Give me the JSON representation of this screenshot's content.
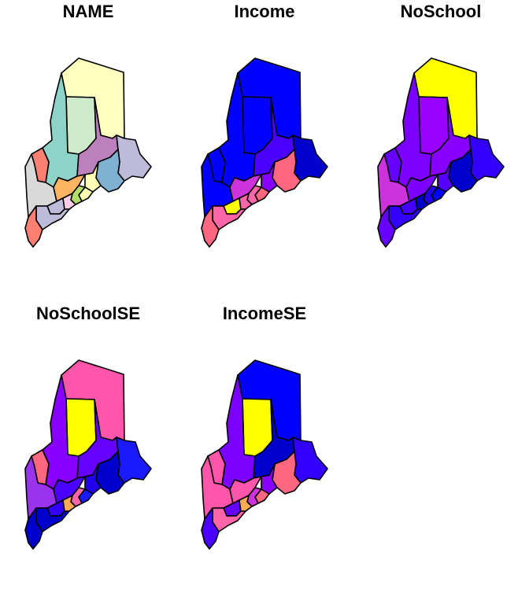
{
  "maps": [
    {
      "title": "NAME",
      "colors": {
        "aroostook": "#ffffc0",
        "piscataquis": "#cdeacb",
        "somerset": "#8dd3c7",
        "franklin": "#fb8072",
        "oxford": "#d9d9d9",
        "penobscot": "#bc80bd",
        "washington": "#bebada",
        "hancock": "#80b1d3",
        "waldo": "#ffffb3",
        "kennebec": "#fdb462",
        "androscoggin": "#bebada",
        "cumberland": "#bebada",
        "york": "#fb8072",
        "sagadahoc": "#fccde5",
        "lincoln": "#b3de69",
        "knox": "#ffffb3"
      }
    },
    {
      "title": "Income",
      "colors": {
        "aroostook": "#0000ff",
        "piscataquis": "#0000ff",
        "somerset": "#0000ff",
        "franklin": "#0000ff",
        "oxford": "#0000ff",
        "penobscot": "#4b00ff",
        "washington": "#0000cc",
        "hancock": "#ff6680",
        "waldo": "#8800ff",
        "kennebec": "#cc33dd",
        "androscoggin": "#ffff00",
        "cumberland": "#ff66aa",
        "york": "#ff6680",
        "sagadahoc": "#ff66aa",
        "lincoln": "#ff66aa",
        "knox": "#ff6680"
      }
    },
    {
      "title": "NoSchool",
      "colors": {
        "aroostook": "#ffff00",
        "piscataquis": "#9900ff",
        "somerset": "#7b00ff",
        "franklin": "#6600ff",
        "oxford": "#cc33dd",
        "penobscot": "#8800ff",
        "washington": "#3300ff",
        "hancock": "#0000cc",
        "waldo": "#5500ff",
        "kennebec": "#7b00ff",
        "androscoggin": "#4400ff",
        "cumberland": "#3300ff",
        "york": "#6600ff",
        "sagadahoc": "#0000cc",
        "lincoln": "#2200ee",
        "knox": "#0000ff"
      }
    },
    {
      "title": "NoSchoolSE",
      "colors": {
        "aroostook": "#ff55aa",
        "piscataquis": "#ffff00",
        "somerset": "#8800ff",
        "franklin": "#ff6680",
        "oxford": "#9933ee",
        "penobscot": "#6600ff",
        "washington": "#1a1aff",
        "hancock": "#0000cc",
        "waldo": "#2200ee",
        "kennebec": "#4b00ff",
        "androscoggin": "#3300ff",
        "cumberland": "#0000cc",
        "york": "#0000cc",
        "sagadahoc": "#ffaa55",
        "lincoln": "#ff66aa",
        "knox": "#1a1aff"
      }
    },
    {
      "title": "IncomeSE",
      "colors": {
        "aroostook": "#0000ff",
        "piscataquis": "#ffff00",
        "somerset": "#7b00ff",
        "franklin": "#ff55aa",
        "oxford": "#ff55aa",
        "penobscot": "#0000cc",
        "washington": "#3300ff",
        "hancock": "#ff6680",
        "waldo": "#8800ff",
        "kennebec": "#ff55aa",
        "androscoggin": "#6600ff",
        "cumberland": "#ff66aa",
        "york": "#4b00ff",
        "sagadahoc": "#ffaa55",
        "lincoln": "#cc33dd",
        "knox": "#ff6680"
      }
    }
  ]
}
